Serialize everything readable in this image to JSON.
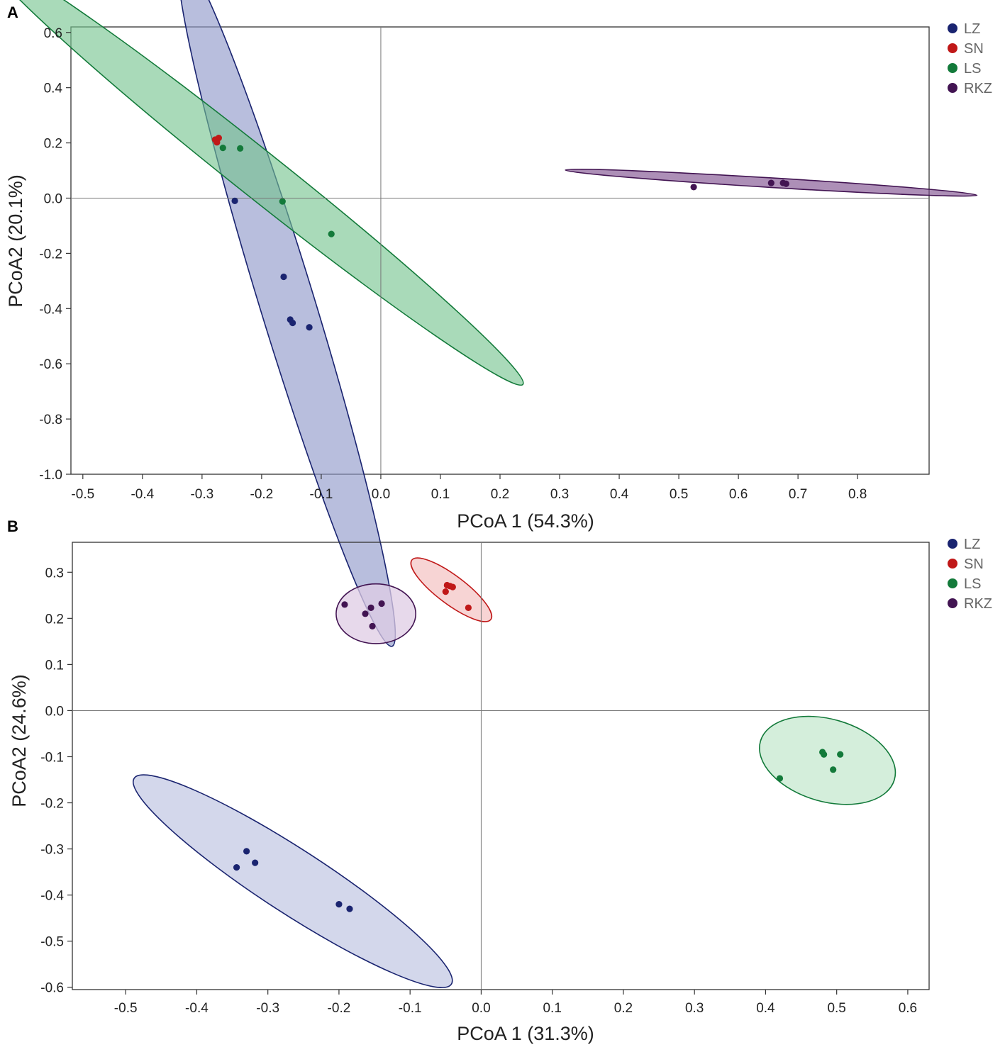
{
  "chart_data": [
    {
      "panel": "A",
      "type": "scatter",
      "title": "",
      "xlabel": "PCoA 1 (54.3%)",
      "ylabel": "PCoA2 (20.1%)",
      "xlim": [
        -0.52,
        0.92
      ],
      "ylim": [
        -1.0,
        0.62
      ],
      "xticks": [
        -0.5,
        -0.4,
        -0.3,
        -0.2,
        -0.1,
        0.0,
        0.1,
        0.2,
        0.3,
        0.4,
        0.5,
        0.6,
        0.7,
        0.8
      ],
      "xtick_labels": [
        "-0.5",
        "-0.4",
        "-0.3",
        "-0.2",
        "-0.1",
        "0.0",
        "0.1",
        "0.2",
        "0.3",
        "0.4",
        "0.5",
        "0.6",
        "0.7",
        "0.8"
      ],
      "yticks": [
        0.6,
        0.4,
        0.2,
        0.0,
        -0.2,
        -0.4,
        -0.6,
        -0.8,
        -1.0
      ],
      "ytick_labels": [
        "0.6",
        "0.4",
        "0.2",
        "0.0",
        "-0.2",
        "-0.4",
        "-0.6",
        "-0.8",
        "-1.0"
      ],
      "legend": {
        "position": "top-right",
        "entries": [
          "LZ",
          "SN",
          "LS",
          "RKZ"
        ]
      },
      "series": [
        {
          "name": "LZ",
          "color": "#1a2470",
          "fill": "#8d96c8",
          "points": [
            [
              -0.245,
              -0.01
            ],
            [
              -0.163,
              -0.285
            ],
            [
              -0.152,
              -0.44
            ],
            [
              -0.148,
              -0.452
            ],
            [
              -0.12,
              -0.468
            ]
          ],
          "ellipse": {
            "cx": -0.158,
            "cy": -0.375,
            "rx": 0.605,
            "ry": 0.046,
            "angle": 73
          }
        },
        {
          "name": "SN",
          "color": "#c01818",
          "fill": "#e79090",
          "points": [
            [
              -0.275,
              0.202
            ],
            [
              -0.278,
              0.212
            ],
            [
              -0.272,
              0.218
            ]
          ],
          "ellipse": null
        },
        {
          "name": "LS",
          "color": "#137a3a",
          "fill": "#74c48e",
          "points": [
            [
              -0.265,
              0.182
            ],
            [
              -0.236,
              0.18
            ],
            [
              -0.165,
              -0.012
            ],
            [
              -0.083,
              -0.13
            ]
          ],
          "ellipse": {
            "cx": -0.21,
            "cy": 0.095,
            "rx": 0.573,
            "ry": 0.039,
            "angle": 38.5
          }
        },
        {
          "name": "RKZ",
          "color": "#421452",
          "fill": "#7a4a8a",
          "points": [
            [
              0.525,
              0.04
            ],
            [
              0.655,
              0.055
            ],
            [
              0.675,
              0.055
            ],
            [
              0.68,
              0.052
            ]
          ],
          "ellipse": {
            "cx": 0.655,
            "cy": 0.056,
            "rx": 0.346,
            "ry": 0.008,
            "angle": 3.5
          }
        }
      ]
    },
    {
      "panel": "B",
      "type": "scatter",
      "title": "",
      "xlabel": "PCoA 1 (31.3%)",
      "ylabel": "PCoA2 (24.6%)",
      "xlim": [
        -0.575,
        0.63
      ],
      "ylim": [
        -0.605,
        0.365
      ],
      "xticks": [
        -0.5,
        -0.4,
        -0.3,
        -0.2,
        -0.1,
        0.0,
        0.1,
        0.2,
        0.3,
        0.4,
        0.5,
        0.6
      ],
      "xtick_labels": [
        "-0.5",
        "-0.4",
        "-0.3",
        "-0.2",
        "-0.1",
        "0.0",
        "0.1",
        "0.2",
        "0.3",
        "0.4",
        "0.5",
        "0.6"
      ],
      "yticks": [
        0.3,
        0.2,
        0.1,
        0.0,
        -0.1,
        -0.2,
        -0.3,
        -0.4,
        -0.5,
        -0.6
      ],
      "ytick_labels": [
        "0.3",
        "0.2",
        "0.1",
        "0.0",
        "-0.1",
        "-0.2",
        "-0.3",
        "-0.4",
        "-0.5",
        "-0.6"
      ],
      "legend": {
        "position": "top-right",
        "entries": [
          "LZ",
          "SN",
          "LS",
          "RKZ"
        ]
      },
      "series": [
        {
          "name": "LZ",
          "color": "#1a2470",
          "fill": "#c4c9e4",
          "points": [
            [
              -0.344,
              -0.34
            ],
            [
              -0.33,
              -0.305
            ],
            [
              -0.318,
              -0.33
            ],
            [
              -0.2,
              -0.42
            ],
            [
              -0.185,
              -0.43
            ]
          ],
          "ellipse": {
            "cx": -0.265,
            "cy": -0.37,
            "rx": 0.266,
            "ry": 0.045,
            "angle": 33
          }
        },
        {
          "name": "SN",
          "color": "#c01818",
          "fill": "#f4c6c6",
          "points": [
            [
              -0.05,
              0.258
            ],
            [
              -0.048,
              0.272
            ],
            [
              -0.044,
              0.27
            ],
            [
              -0.04,
              0.268
            ],
            [
              -0.018,
              0.223
            ]
          ],
          "ellipse": {
            "cx": -0.042,
            "cy": 0.262,
            "rx": 0.0695,
            "ry": 0.02,
            "angle": 37
          }
        },
        {
          "name": "LS",
          "color": "#137a3a",
          "fill": "#c6e8cf",
          "points": [
            [
              0.42,
              -0.147
            ],
            [
              0.48,
              -0.09
            ],
            [
              0.482,
              -0.095
            ],
            [
              0.495,
              -0.128
            ],
            [
              0.505,
              -0.095
            ]
          ],
          "ellipse": {
            "cx": 0.487,
            "cy": -0.108,
            "rx": 0.098,
            "ry": 0.058,
            "angle": 16
          }
        },
        {
          "name": "RKZ",
          "color": "#421452",
          "fill": "#dfcce4",
          "points": [
            [
              -0.192,
              0.23
            ],
            [
              -0.163,
              0.21
            ],
            [
              -0.155,
              0.223
            ],
            [
              -0.153,
              0.183
            ],
            [
              -0.14,
              0.232
            ]
          ],
          "ellipse": {
            "cx": -0.148,
            "cy": 0.21,
            "rx": 0.056,
            "ry": 0.042,
            "angle": 0
          }
        }
      ]
    }
  ]
}
